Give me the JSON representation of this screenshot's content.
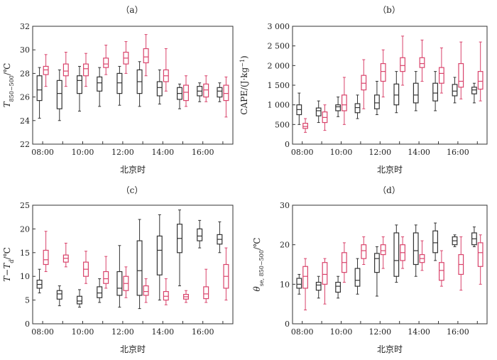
{
  "colors": {
    "black_series": "#333333",
    "red_series": "#d9436b",
    "axis": "#333333"
  },
  "chart_data": [
    {
      "panel_label": "（a）",
      "type": "box",
      "xlabel": "北京时",
      "ylabel_main": "T",
      "ylabel_sub": "850−500",
      "ylabel_unit": "/℃",
      "ylim": [
        22,
        32
      ],
      "yticks": [
        22,
        24,
        26,
        28,
        30,
        32
      ],
      "categories": [
        "08:00",
        "09:00",
        "10:00",
        "11:00",
        "12:00",
        "13:00",
        "14:00",
        "15:00",
        "16:00",
        "17:00"
      ],
      "xtick_labels": [
        "08:00",
        "10:00",
        "12:00",
        "14:00",
        "16:00"
      ],
      "series": [
        {
          "color_key": "black_series",
          "boxes": [
            [
              24.2,
              25.7,
              26.6,
              27.8,
              28.5
            ],
            [
              24.0,
              25.0,
              26.3,
              27.4,
              28.3
            ],
            [
              24.8,
              26.3,
              27.4,
              27.8,
              28.6
            ],
            [
              25.2,
              26.5,
              27.2,
              27.7,
              28.5
            ],
            [
              25.3,
              26.3,
              27.2,
              28.0,
              28.6
            ],
            [
              25.2,
              26.3,
              27.3,
              28.3,
              29.0
            ],
            [
              25.4,
              26.1,
              26.8,
              27.3,
              28.3
            ],
            [
              25.0,
              25.8,
              26.3,
              26.8,
              27.1
            ],
            [
              25.6,
              26.1,
              26.5,
              26.9,
              27.2
            ],
            [
              25.6,
              26.0,
              26.5,
              26.8,
              27.2
            ]
          ]
        },
        {
          "color_key": "red_series",
          "boxes": [
            [
              26.9,
              27.9,
              28.3,
              28.6,
              29.6
            ],
            [
              26.9,
              27.8,
              28.2,
              28.8,
              29.8
            ],
            [
              26.9,
              27.8,
              28.4,
              28.8,
              29.7
            ],
            [
              27.9,
              28.5,
              28.8,
              29.3,
              30.4
            ],
            [
              28.0,
              28.8,
              29.3,
              29.8,
              30.7
            ],
            [
              27.8,
              28.9,
              29.4,
              30.1,
              31.3
            ],
            [
              26.5,
              27.3,
              27.8,
              28.3,
              30.1
            ],
            [
              25.2,
              25.7,
              26.4,
              27.0,
              27.8
            ],
            [
              25.6,
              26.0,
              26.6,
              27.1,
              27.8
            ],
            [
              24.3,
              25.7,
              26.3,
              27.0,
              27.7
            ]
          ]
        }
      ]
    },
    {
      "panel_label": "（b）",
      "type": "box",
      "xlabel": "北京时",
      "ylabel_main": "CAPE/(J·kg",
      "ylabel_sup": "−1",
      "ylabel_end": ")",
      "ylim": [
        0,
        3000
      ],
      "yticks": [
        0,
        500,
        1000,
        1500,
        2000,
        2500,
        3000
      ],
      "ytick_labels": [
        "0",
        "500",
        "1 000",
        "1 500",
        "2 000",
        "2 500",
        "3 000"
      ],
      "categories": [
        "08:00",
        "09:00",
        "10:00",
        "11:00",
        "12:00",
        "13:00",
        "14:00",
        "15:00",
        "16:00",
        "17:00"
      ],
      "xtick_labels": [
        "08:00",
        "10:00",
        "12:00",
        "14:00",
        "16:00"
      ],
      "series": [
        {
          "color_key": "black_series",
          "boxes": [
            [
              500,
              750,
              880,
              1000,
              1300
            ],
            [
              550,
              720,
              850,
              920,
              1100
            ],
            [
              700,
              850,
              950,
              1000,
              1200
            ],
            [
              650,
              800,
              930,
              1030,
              1250
            ],
            [
              750,
              900,
              1050,
              1250,
              1600
            ],
            [
              800,
              1000,
              1250,
              1530,
              1850
            ],
            [
              850,
              1050,
              1250,
              1550,
              1850
            ],
            [
              850,
              1100,
              1300,
              1550,
              1850
            ],
            [
              1050,
              1230,
              1350,
              1520,
              1700
            ],
            [
              1050,
              1280,
              1380,
              1450,
              1550
            ]
          ]
        },
        {
          "color_key": "red_series",
          "boxes": [
            [
              300,
              400,
              450,
              530,
              650
            ],
            [
              350,
              550,
              680,
              820,
              1000
            ],
            [
              500,
              850,
              1000,
              1250,
              1700
            ],
            [
              900,
              1380,
              1550,
              1750,
              2150
            ],
            [
              1200,
              1600,
              1850,
              2050,
              2400
            ],
            [
              1500,
              1850,
              2000,
              2200,
              2750
            ],
            [
              1600,
              1950,
              2050,
              2200,
              2650
            ],
            [
              1300,
              1550,
              1800,
              1950,
              2450
            ],
            [
              1150,
              1450,
              1600,
              2050,
              2600
            ],
            [
              1100,
              1400,
              1600,
              1850,
              2600
            ]
          ]
        }
      ]
    },
    {
      "panel_label": "（c）",
      "type": "box",
      "xlabel": "北京时",
      "ylabel_main": "T",
      "ylabel_mid": "−T",
      "ylabel_sub": "d",
      "ylabel_unit": "/℃",
      "ylim": [
        0,
        25
      ],
      "yticks": [
        0,
        5,
        10,
        15,
        20,
        25
      ],
      "categories": [
        "08:00",
        "09:00",
        "10:00",
        "11:00",
        "12:00",
        "13:00",
        "14:00",
        "15:00",
        "16:00",
        "17:00"
      ],
      "xtick_labels": [
        "08:00",
        "10:00",
        "12:00",
        "14:00",
        "16:00"
      ],
      "series": [
        {
          "color_key": "black_series",
          "boxes": [
            [
              6.5,
              7.5,
              8.3,
              9.2,
              11.5
            ],
            [
              3.8,
              5.2,
              6.3,
              7.0,
              8.0
            ],
            [
              3.5,
              4.2,
              4.8,
              5.8,
              7.2
            ],
            [
              4.5,
              5.5,
              6.5,
              7.8,
              9.5
            ],
            [
              3.5,
              6.0,
              7.5,
              11.0,
              16.5
            ],
            [
              3.2,
              6.0,
              11.2,
              17.5,
              22.0
            ],
            [
              5.0,
              10.3,
              15.5,
              18.5,
              23.0
            ],
            [
              8.0,
              15.0,
              18.0,
              21.0,
              24.0
            ],
            [
              16.0,
              17.5,
              18.5,
              20.0,
              21.8
            ],
            [
              15.0,
              16.8,
              17.8,
              18.8,
              21.5
            ]
          ]
        },
        {
          "color_key": "red_series",
          "boxes": [
            [
              11.0,
              12.5,
              13.5,
              15.5,
              19.5
            ],
            [
              12.0,
              13.0,
              13.8,
              14.5,
              17.0
            ],
            [
              8.5,
              10.0,
              11.5,
              13.0,
              15.3
            ],
            [
              7.5,
              8.5,
              9.5,
              11.0,
              14.2
            ],
            [
              5.5,
              7.0,
              8.5,
              10.0,
              12.0
            ],
            [
              4.5,
              6.0,
              6.8,
              8.0,
              9.5
            ],
            [
              4.0,
              5.0,
              5.8,
              6.8,
              9.5
            ],
            [
              4.5,
              5.2,
              5.7,
              6.2,
              7.0
            ],
            [
              4.5,
              5.3,
              6.3,
              7.8,
              11.5
            ],
            [
              5.0,
              7.5,
              10.0,
              12.5,
              16.0
            ]
          ]
        }
      ]
    },
    {
      "panel_label": "（d）",
      "type": "box",
      "xlabel": "北京时",
      "ylabel_main": "θ",
      "ylabel_sub": "se, 850−500",
      "ylabel_unit": "/℃",
      "ylim": [
        0,
        30
      ],
      "yticks": [
        0,
        10,
        20,
        30
      ],
      "categories": [
        "08:00",
        "09:00",
        "10:00",
        "11:00",
        "12:00",
        "13:00",
        "14:00",
        "15:00",
        "16:00",
        "17:00"
      ],
      "xtick_labels": [
        "08:00",
        "10:00",
        "12:00",
        "14:00",
        "16:00"
      ],
      "series": [
        {
          "color_key": "black_series",
          "boxes": [
            [
              7.5,
              9.0,
              10.0,
              11.5,
              12.5
            ],
            [
              6.5,
              8.5,
              9.8,
              10.5,
              12.0
            ],
            [
              6.5,
              8.0,
              9.5,
              10.5,
              12.0
            ],
            [
              7.5,
              9.5,
              11.0,
              14.0,
              16.5
            ],
            [
              7.0,
              13.0,
              16.5,
              17.8,
              19.5
            ],
            [
              10.5,
              12.0,
              16.0,
              23.0,
              25.0
            ],
            [
              12.0,
              15.0,
              18.5,
              23.0,
              25.0
            ],
            [
              16.0,
              18.0,
              20.5,
              23.5,
              25.5
            ],
            [
              19.5,
              20.0,
              21.0,
              22.0,
              22.5
            ],
            [
              19.5,
              20.0,
              21.5,
              23.0,
              24.5
            ]
          ]
        },
        {
          "color_key": "red_series",
          "boxes": [
            [
              3.5,
              9.0,
              12.0,
              14.5,
              16.5
            ],
            [
              5.0,
              10.0,
              12.5,
              15.5,
              16.5
            ],
            [
              10.5,
              13.0,
              15.5,
              18.0,
              20.5
            ],
            [
              15.0,
              16.5,
              18.5,
              20.0,
              22.0
            ],
            [
              14.0,
              17.5,
              18.5,
              20.0,
              22.0
            ],
            [
              14.0,
              16.0,
              18.0,
              20.0,
              22.0
            ],
            [
              13.5,
              15.5,
              16.5,
              17.5,
              21.0
            ],
            [
              9.5,
              11.0,
              13.5,
              15.5,
              18.5
            ],
            [
              8.5,
              12.5,
              15.0,
              17.5,
              22.0
            ],
            [
              10.0,
              14.5,
              18.0,
              20.5,
              22.5
            ]
          ]
        }
      ]
    }
  ]
}
